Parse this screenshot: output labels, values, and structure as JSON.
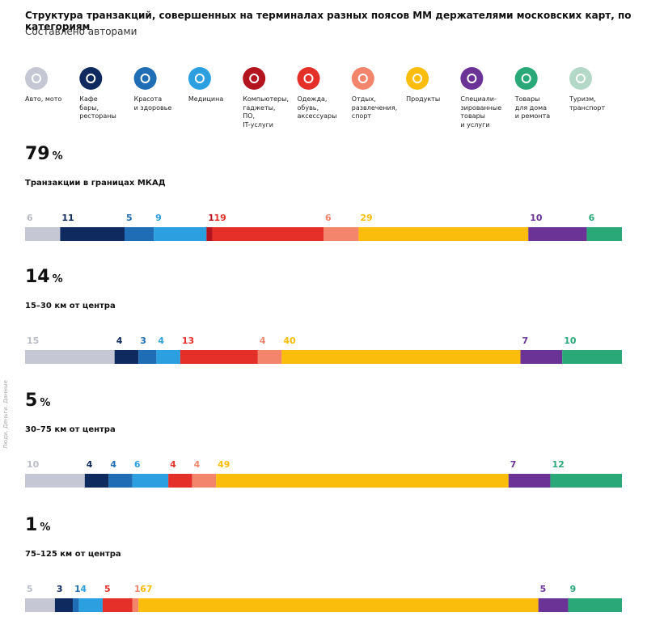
{
  "chart_data": {
    "type": "stacked_bar_100",
    "title": "Структура транзакций, совершенных на терминалах разных поясов ММ держателями московских карт, по категориям",
    "subtitle": "Составлено авторами",
    "source": "Люди. Деньги. Данные",
    "share_unit": "%",
    "categories": [
      "Транзакции в границах МКАД",
      "15–30 км от центра",
      "30–75 км от центра",
      "75–125 км от центра"
    ],
    "shares": [
      79,
      14,
      5,
      1
    ],
    "series": [
      {
        "name": "Авто, мото",
        "color": "#c5c8d4",
        "label_color": "#b8bcc8",
        "values": [
          6,
          15,
          10,
          5
        ]
      },
      {
        "name": "Кафе\nбары,\nрестораны",
        "color": "#0e2a5e",
        "values": [
          11,
          4,
          4,
          3
        ]
      },
      {
        "name": "Красота\nи здоровье",
        "color": "#1f6db5",
        "values": [
          5,
          3,
          4,
          1
        ]
      },
      {
        "name": "Медицина",
        "color": "#2b9fe0",
        "values": [
          9,
          4,
          6,
          4
        ]
      },
      {
        "name": "Компьютеры,\nгаджеты,\nПО,\nIT-услуги",
        "color": "#b3141e",
        "values": [
          1,
          null,
          null,
          null
        ]
      },
      {
        "name": "Одежда,\nобувь,\nаксессуары",
        "color": "#e5302a",
        "values": [
          19,
          13,
          4,
          5
        ]
      },
      {
        "name": "Отдых,\nразвлечения,\nспорт",
        "color": "#f2856c",
        "values": [
          6,
          4,
          4,
          1
        ]
      },
      {
        "name": "Продукты",
        "color": "#fbbd0b",
        "values": [
          29,
          40,
          49,
          67
        ]
      },
      {
        "name": "Специали-\nзированные\nтовары\nи услуги",
        "color": "#6c3396",
        "values": [
          10,
          7,
          7,
          5
        ]
      },
      {
        "name": "Товары\nдля дома\nи ремонта",
        "color": "#2aa877",
        "values": [
          6,
          10,
          12,
          9
        ]
      },
      {
        "name": "Туризм,\nтранспорт",
        "color": "#b3d8c8",
        "values": [
          null,
          null,
          null,
          null
        ]
      }
    ]
  }
}
